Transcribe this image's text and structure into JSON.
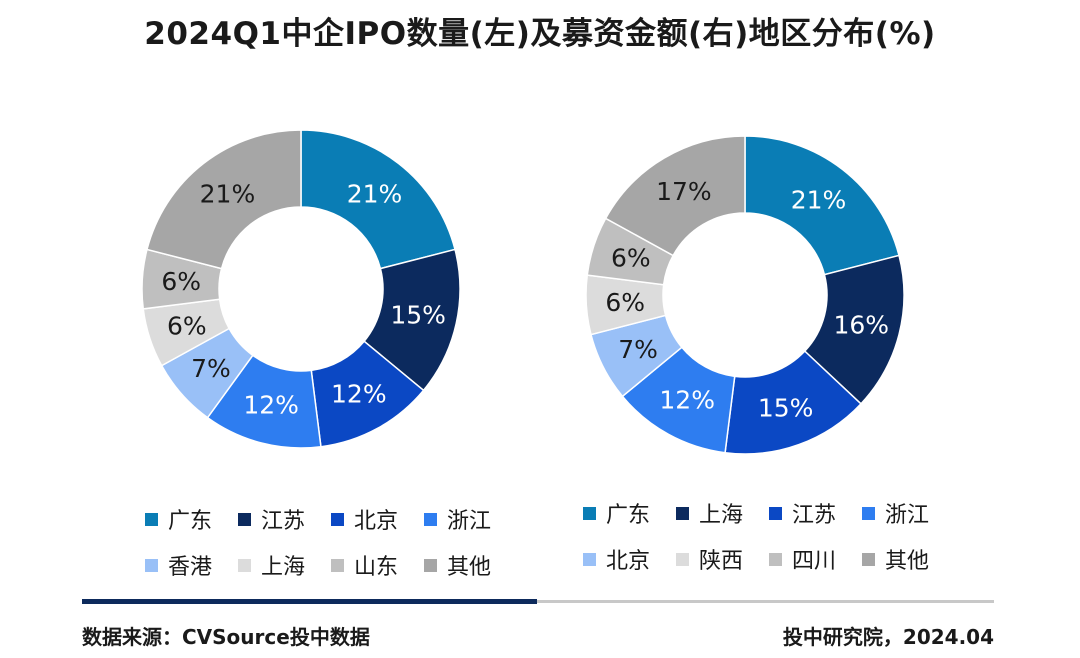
{
  "title": "2024Q1中企IPO数量(左)及募资金额(右)地区分布(%)",
  "chart_data": [
    {
      "type": "pie",
      "variant": "donut",
      "name": "IPO数量",
      "categories": [
        "广东",
        "江苏",
        "北京",
        "浙江",
        "香港",
        "上海",
        "山东",
        "其他"
      ],
      "values": [
        21,
        15,
        12,
        12,
        7,
        6,
        6,
        21
      ],
      "labels": [
        "21%",
        "15%",
        "12%",
        "12%",
        "7%",
        "6%",
        "6%",
        "21%"
      ],
      "colors": [
        "#0a7db5",
        "#0c2a5e",
        "#0b48c4",
        "#2e7df0",
        "#99c0f7",
        "#dcdcdc",
        "#bfbfbf",
        "#a6a6a6"
      ],
      "label_colors": [
        "#ffffff",
        "#ffffff",
        "#ffffff",
        "#ffffff",
        "#1a1a1a",
        "#1a1a1a",
        "#1a1a1a",
        "#1a1a1a"
      ]
    },
    {
      "type": "pie",
      "variant": "donut",
      "name": "募资金额",
      "categories": [
        "广东",
        "上海",
        "江苏",
        "浙江",
        "北京",
        "陕西",
        "四川",
        "其他"
      ],
      "values": [
        21,
        16,
        15,
        12,
        7,
        6,
        6,
        17
      ],
      "labels": [
        "21%",
        "16%",
        "15%",
        "12%",
        "7%",
        "6%",
        "6%",
        "17%"
      ],
      "colors": [
        "#0a7db5",
        "#0c2a5e",
        "#0b48c4",
        "#2e7df0",
        "#99c0f7",
        "#dcdcdc",
        "#bfbfbf",
        "#a6a6a6"
      ],
      "label_colors": [
        "#ffffff",
        "#ffffff",
        "#ffffff",
        "#ffffff",
        "#1a1a1a",
        "#1a1a1a",
        "#1a1a1a",
        "#1a1a1a"
      ]
    }
  ],
  "footer": {
    "source": "数据来源：CVSource投中数据",
    "credit": "投中研究院，2024.04"
  }
}
